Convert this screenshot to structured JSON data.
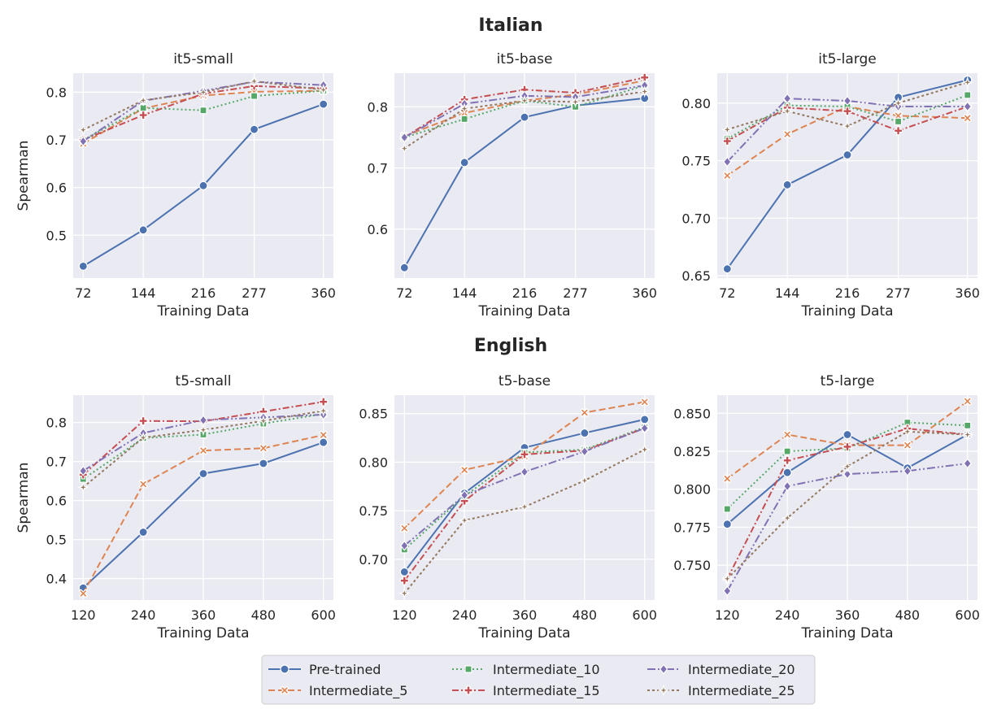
{
  "colors": {
    "background": "#eaeaf2",
    "grid": "#ffffff",
    "series": [
      "#4c72b0",
      "#dd8452",
      "#55a868",
      "#c44e52",
      "#8172b3",
      "#937860"
    ]
  },
  "legend": {
    "placement": "bottom-center",
    "entries": [
      "Pre-trained",
      "Intermediate_5",
      "Intermediate_10",
      "Intermediate_15",
      "Intermediate_20",
      "Intermediate_25"
    ]
  },
  "chart_data": [
    {
      "type": "line",
      "group": "Italian",
      "title": "it5-small",
      "xlabel": "Training Data",
      "ylabel": "Spearman",
      "x": [
        72,
        144,
        216,
        277,
        360
      ],
      "xlim": [
        60,
        372
      ],
      "ylim": [
        0.41,
        0.84
      ],
      "yticks": [
        0.5,
        0.6,
        0.7,
        0.8
      ],
      "ydecimals": 1,
      "grid": true,
      "series": [
        {
          "name": "Pre-trained",
          "values": [
            0.435,
            0.511,
            0.604,
            0.722,
            0.775
          ]
        },
        {
          "name": "Intermediate_5",
          "values": [
            0.692,
            0.766,
            0.793,
            0.801,
            0.803
          ]
        },
        {
          "name": "Intermediate_10",
          "values": [
            0.7,
            0.767,
            0.762,
            0.792,
            0.803
          ]
        },
        {
          "name": "Intermediate_15",
          "values": [
            0.7,
            0.752,
            0.797,
            0.813,
            0.808
          ]
        },
        {
          "name": "Intermediate_20",
          "values": [
            0.697,
            0.782,
            0.803,
            0.822,
            0.815
          ]
        },
        {
          "name": "Intermediate_25",
          "values": [
            0.721,
            0.783,
            0.8,
            0.823,
            0.805
          ]
        }
      ]
    },
    {
      "type": "line",
      "group": "Italian",
      "title": "it5-base",
      "xlabel": "Training Data",
      "ylabel": "",
      "x": [
        72,
        144,
        216,
        277,
        360
      ],
      "xlim": [
        60,
        372
      ],
      "ylim": [
        0.52,
        0.855
      ],
      "yticks": [
        0.6,
        0.7,
        0.8
      ],
      "ydecimals": 1,
      "grid": true,
      "series": [
        {
          "name": "Pre-trained",
          "values": [
            0.537,
            0.709,
            0.783,
            0.802,
            0.814
          ]
        },
        {
          "name": "Intermediate_5",
          "values": [
            0.752,
            0.79,
            0.81,
            0.82,
            0.843
          ]
        },
        {
          "name": "Intermediate_10",
          "values": [
            0.75,
            0.78,
            0.81,
            0.8,
            0.835
          ]
        },
        {
          "name": "Intermediate_15",
          "values": [
            0.75,
            0.812,
            0.828,
            0.823,
            0.848
          ]
        },
        {
          "name": "Intermediate_20",
          "values": [
            0.75,
            0.805,
            0.818,
            0.816,
            0.835
          ]
        },
        {
          "name": "Intermediate_25",
          "values": [
            0.732,
            0.797,
            0.81,
            0.808,
            0.825
          ]
        }
      ]
    },
    {
      "type": "line",
      "group": "Italian",
      "title": "it5-large",
      "xlabel": "Training Data",
      "ylabel": "",
      "x": [
        72,
        144,
        216,
        277,
        360
      ],
      "xlim": [
        60,
        372
      ],
      "ylim": [
        0.648,
        0.826
      ],
      "yticks": [
        0.65,
        0.7,
        0.75,
        0.8
      ],
      "ydecimals": 2,
      "grid": true,
      "series": [
        {
          "name": "Pre-trained",
          "values": [
            0.656,
            0.729,
            0.755,
            0.805,
            0.82
          ]
        },
        {
          "name": "Intermediate_5",
          "values": [
            0.737,
            0.773,
            0.797,
            0.789,
            0.787
          ]
        },
        {
          "name": "Intermediate_10",
          "values": [
            0.769,
            0.798,
            0.797,
            0.784,
            0.807
          ]
        },
        {
          "name": "Intermediate_15",
          "values": [
            0.767,
            0.796,
            0.793,
            0.776,
            0.797
          ]
        },
        {
          "name": "Intermediate_20",
          "values": [
            0.749,
            0.804,
            0.802,
            0.797,
            0.797
          ]
        },
        {
          "name": "Intermediate_25",
          "values": [
            0.777,
            0.793,
            0.78,
            0.8,
            0.818
          ]
        }
      ]
    },
    {
      "type": "line",
      "group": "English",
      "title": "t5-small",
      "xlabel": "Training Data",
      "ylabel": "Spearman",
      "x": [
        120,
        240,
        360,
        480,
        600
      ],
      "xlim": [
        100,
        620
      ],
      "ylim": [
        0.345,
        0.87
      ],
      "yticks": [
        0.4,
        0.5,
        0.6,
        0.7,
        0.8
      ],
      "ydecimals": 1,
      "grid": true,
      "series": [
        {
          "name": "Pre-trained",
          "values": [
            0.376,
            0.519,
            0.669,
            0.695,
            0.749
          ]
        },
        {
          "name": "Intermediate_5",
          "values": [
            0.362,
            0.642,
            0.728,
            0.734,
            0.768
          ]
        },
        {
          "name": "Intermediate_10",
          "values": [
            0.655,
            0.76,
            0.769,
            0.797,
            0.822
          ]
        },
        {
          "name": "Intermediate_15",
          "values": [
            0.666,
            0.804,
            0.803,
            0.828,
            0.853
          ]
        },
        {
          "name": "Intermediate_20",
          "values": [
            0.676,
            0.773,
            0.806,
            0.813,
            0.82
          ]
        },
        {
          "name": "Intermediate_25",
          "values": [
            0.634,
            0.761,
            0.781,
            0.804,
            0.83
          ]
        }
      ]
    },
    {
      "type": "line",
      "group": "English",
      "title": "t5-base",
      "xlabel": "Training Data",
      "ylabel": "",
      "x": [
        120,
        240,
        360,
        480,
        600
      ],
      "xlim": [
        100,
        620
      ],
      "ylim": [
        0.658,
        0.869
      ],
      "yticks": [
        0.7,
        0.75,
        0.8,
        0.85
      ],
      "ydecimals": 2,
      "grid": true,
      "series": [
        {
          "name": "Pre-trained",
          "values": [
            0.687,
            0.768,
            0.815,
            0.83,
            0.844
          ]
        },
        {
          "name": "Intermediate_5",
          "values": [
            0.732,
            0.792,
            0.806,
            0.851,
            0.862
          ]
        },
        {
          "name": "Intermediate_10",
          "values": [
            0.71,
            0.765,
            0.81,
            0.813,
            0.836
          ]
        },
        {
          "name": "Intermediate_15",
          "values": [
            0.678,
            0.76,
            0.808,
            0.812,
            0.835
          ]
        },
        {
          "name": "Intermediate_20",
          "values": [
            0.714,
            0.766,
            0.79,
            0.811,
            0.835
          ]
        },
        {
          "name": "Intermediate_25",
          "values": [
            0.665,
            0.74,
            0.754,
            0.781,
            0.813
          ]
        }
      ]
    },
    {
      "type": "line",
      "group": "English",
      "title": "t5-large",
      "xlabel": "Training Data",
      "ylabel": "",
      "x": [
        120,
        240,
        360,
        480,
        600
      ],
      "xlim": [
        100,
        620
      ],
      "ylim": [
        0.727,
        0.862
      ],
      "yticks": [
        0.75,
        0.775,
        0.8,
        0.825,
        0.85
      ],
      "ydecimals": 3,
      "grid": true,
      "series": [
        {
          "name": "Pre-trained",
          "values": [
            0.777,
            0.811,
            0.836,
            0.814,
            0.836
          ]
        },
        {
          "name": "Intermediate_5",
          "values": [
            0.807,
            0.836,
            0.829,
            0.829,
            0.858
          ]
        },
        {
          "name": "Intermediate_10",
          "values": [
            0.787,
            0.825,
            0.827,
            0.844,
            0.842
          ]
        },
        {
          "name": "Intermediate_15",
          "values": [
            0.741,
            0.819,
            0.828,
            0.84,
            0.836
          ]
        },
        {
          "name": "Intermediate_20",
          "values": [
            0.733,
            0.802,
            0.81,
            0.812,
            0.817
          ]
        },
        {
          "name": "Intermediate_25",
          "values": [
            0.741,
            0.781,
            0.815,
            0.838,
            0.836
          ]
        }
      ]
    }
  ],
  "group_titles": {
    "italian": "Italian",
    "english": "English"
  }
}
